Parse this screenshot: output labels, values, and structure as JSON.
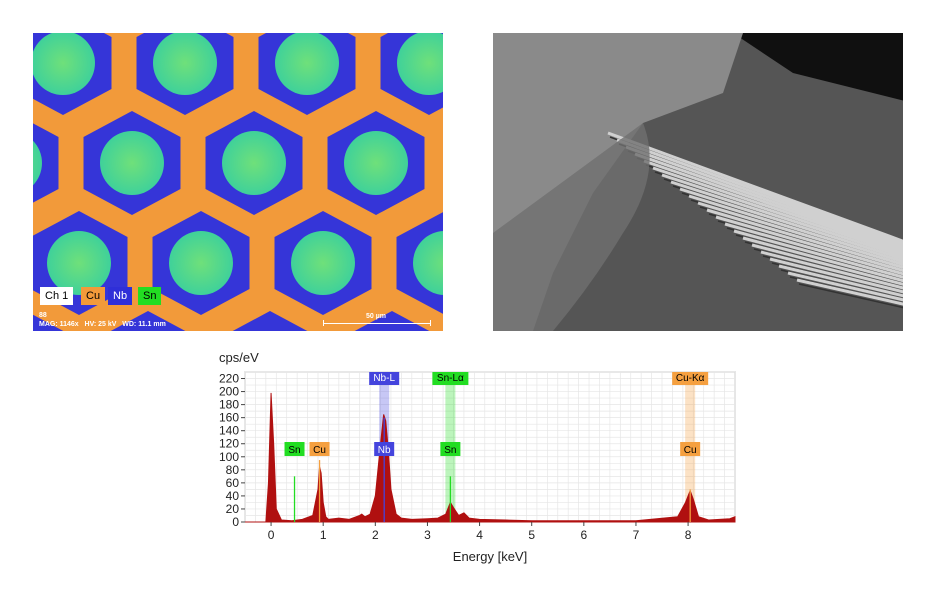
{
  "eds_map": {
    "legend": [
      {
        "label": "Ch 1",
        "bg": "#ffffff",
        "fg": "#000000"
      },
      {
        "label": "Cu",
        "bg": "#f29a3a",
        "fg": "#000000"
      },
      {
        "label": "Nb",
        "bg": "#2f2fd8",
        "fg": "#ffffff"
      },
      {
        "label": "Sn",
        "bg": "#22dd22",
        "fg": "#000000"
      }
    ],
    "id_text": "88",
    "info_text": "MAG: 1146x   HV: 25 kV   WD: 11.1 mm",
    "scale_label": "50 µm",
    "colors": {
      "matrix": "#f29a3a",
      "barrier": "#3535d8",
      "core": "#3fd19a",
      "core_center": "#6fe07a"
    }
  },
  "sem_image": {
    "colors": {
      "background": "#101010",
      "mass": "#8a8a8a",
      "filament": "#d0d0d0"
    }
  },
  "spectrum": {
    "y_unit": "cps/eV",
    "x_label": "Energy [keV]",
    "peak_labels": [
      {
        "label": "Sn",
        "color": "#22dd22"
      },
      {
        "label": "Cu",
        "color": "#f5a040"
      },
      {
        "label": "Nb",
        "color": "#4444dd"
      },
      {
        "label": "Sn",
        "color": "#22dd22"
      },
      {
        "label": "Cu",
        "color": "#f5a040"
      }
    ],
    "line_labels": [
      {
        "label": "Nb-L",
        "color": "#4444dd"
      },
      {
        "label": "Sn-Lα",
        "color": "#22dd22"
      },
      {
        "label": "Cu-Kα",
        "color": "#f5a040"
      }
    ]
  },
  "chart_data": {
    "type": "area",
    "title": "",
    "xlabel": "Energy [keV]",
    "ylabel": "cps/eV",
    "xlim": [
      -0.5,
      8.9
    ],
    "ylim": [
      0,
      230
    ],
    "x_ticks": [
      0,
      1,
      2,
      3,
      4,
      5,
      6,
      7,
      8
    ],
    "y_ticks": [
      0,
      20,
      40,
      60,
      80,
      100,
      120,
      140,
      160,
      180,
      200,
      220
    ],
    "grid": true,
    "series": [
      {
        "color": "#b01010",
        "x": [
          -0.5,
          -0.1,
          -0.05,
          0.0,
          0.05,
          0.1,
          0.2,
          0.4,
          0.6,
          0.8,
          0.9,
          0.93,
          0.96,
          1.0,
          1.05,
          1.1,
          1.3,
          1.5,
          1.7,
          1.74,
          1.8,
          1.9,
          2.0,
          2.1,
          2.16,
          2.2,
          2.25,
          2.3,
          2.4,
          2.5,
          2.7,
          3.0,
          3.2,
          3.35,
          3.44,
          3.5,
          3.6,
          3.7,
          3.8,
          4.0,
          4.5,
          5.0,
          6.0,
          7.0,
          7.8,
          7.95,
          8.04,
          8.1,
          8.2,
          8.4,
          8.8,
          8.9
        ],
        "y": [
          0,
          0,
          60,
          198,
          120,
          20,
          3,
          2,
          4,
          10,
          50,
          85,
          75,
          30,
          8,
          4,
          6,
          4,
          10,
          12,
          8,
          12,
          40,
          120,
          165,
          155,
          110,
          50,
          12,
          6,
          4,
          5,
          6,
          12,
          30,
          22,
          10,
          14,
          6,
          4,
          3,
          2,
          2,
          2,
          8,
          30,
          48,
          35,
          8,
          3,
          5,
          8
        ]
      }
    ],
    "markers": [
      {
        "label": "Sn",
        "x": 0.45,
        "height": 70,
        "color": "#22dd22"
      },
      {
        "label": "Cu",
        "x": 0.93,
        "height": 95,
        "color": "#f5a040"
      },
      {
        "label": "Nb",
        "x": 2.17,
        "height": 160,
        "color": "#4444dd"
      },
      {
        "label": "Sn",
        "x": 3.44,
        "height": 70,
        "color": "#22dd22"
      },
      {
        "label": "Cu",
        "x": 8.04,
        "height": 50,
        "color": "#f5a040"
      }
    ],
    "bands": [
      {
        "label": "Nb-L",
        "x": 2.17,
        "color": "#4444dd"
      },
      {
        "label": "Sn-Lα",
        "x": 3.44,
        "color": "#22dd22"
      },
      {
        "label": "Cu-Kα",
        "x": 8.04,
        "color": "#f5a040"
      }
    ]
  }
}
